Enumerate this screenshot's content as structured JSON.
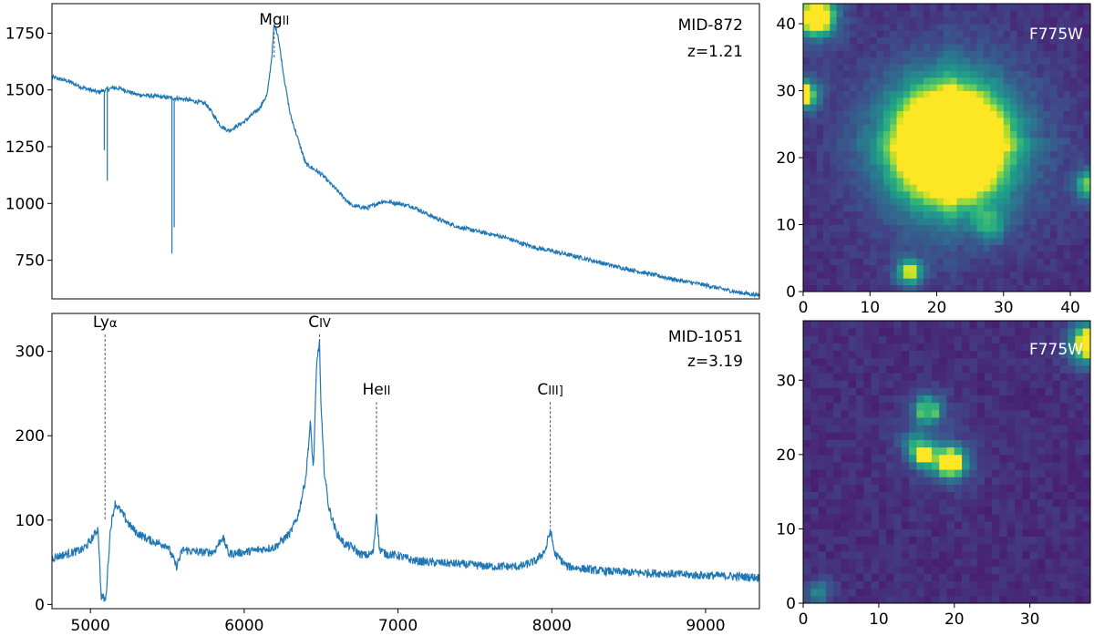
{
  "chart_data": [
    {
      "type": "line",
      "object": "MID-872",
      "redshift_label": "z=1.21",
      "xlim": [
        4750,
        9350
      ],
      "ylim": [
        580,
        1880
      ],
      "yticks": [
        750,
        1000,
        1250,
        1500,
        1750
      ],
      "xticks": [],
      "lines": [
        {
          "label": "Mg",
          "ion": "II",
          "x": 6195,
          "top": 1755,
          "bottom": 1640
        }
      ],
      "series": [
        {
          "name": "flux",
          "color": "#1f77b4",
          "x": [
            4755,
            4850,
            4950,
            5050,
            5150,
            5200,
            5300,
            5450,
            5600,
            5750,
            5850,
            5900,
            6000,
            6100,
            6150,
            6180,
            6195,
            6220,
            6260,
            6300,
            6400,
            6500,
            6600,
            6700,
            6800,
            6900,
            7000,
            7100,
            7200,
            7300,
            7400,
            7500,
            7600,
            7700,
            7800,
            7900,
            8000,
            8200,
            8400,
            8600,
            8800,
            9000,
            9200,
            9350
          ],
          "y": [
            1555,
            1540,
            1510,
            1490,
            1510,
            1505,
            1480,
            1470,
            1460,
            1440,
            1340,
            1320,
            1360,
            1420,
            1480,
            1650,
            1790,
            1740,
            1550,
            1390,
            1175,
            1130,
            1060,
            990,
            980,
            1010,
            1000,
            985,
            950,
            920,
            895,
            880,
            865,
            850,
            825,
            805,
            790,
            760,
            725,
            695,
            665,
            640,
            610,
            595
          ]
        },
        {
          "name": "absorption-dips",
          "x": [
            5090,
            5110,
            5530,
            5545
          ],
          "y": [
            1235,
            1100,
            780,
            895
          ]
        }
      ]
    },
    {
      "type": "line",
      "object": "MID-1051",
      "redshift_label": "z=3.19",
      "xlim": [
        4750,
        9350
      ],
      "ylim": [
        -5,
        345
      ],
      "yticks": [
        0,
        100,
        200,
        300
      ],
      "xticks": [
        5000,
        6000,
        7000,
        8000,
        9000
      ],
      "lines": [
        {
          "label": "Ly",
          "ion": "α",
          "x": 5095,
          "top": 320,
          "bottom": 100
        },
        {
          "label": "C",
          "ion": "IV",
          "x": 6490,
          "top": 320,
          "bottom": 310
        },
        {
          "label": "He",
          "ion": "II",
          "x": 6860,
          "top": 240,
          "bottom": 110
        },
        {
          "label": "C",
          "ion": "III]",
          "x": 7990,
          "top": 240,
          "bottom": 92
        }
      ],
      "series": [
        {
          "name": "flux",
          "color": "#1f77b4",
          "x": [
            4750,
            4850,
            4950,
            5000,
            5050,
            5070,
            5100,
            5130,
            5160,
            5200,
            5250,
            5300,
            5400,
            5500,
            5560,
            5600,
            5700,
            5800,
            5860,
            5900,
            6000,
            6100,
            6200,
            6300,
            6350,
            6400,
            6430,
            6450,
            6470,
            6480,
            6490,
            6500,
            6520,
            6550,
            6600,
            6650,
            6700,
            6750,
            6800,
            6840,
            6860,
            6880,
            6920,
            7000,
            7100,
            7200,
            7400,
            7600,
            7800,
            7900,
            7960,
            7990,
            8020,
            8100,
            8300,
            8500,
            8700,
            8900,
            9100,
            9350
          ],
          "y": [
            55,
            60,
            65,
            75,
            90,
            10,
            5,
            90,
            120,
            110,
            95,
            85,
            75,
            70,
            45,
            65,
            62,
            62,
            80,
            60,
            62,
            65,
            68,
            85,
            105,
            150,
            215,
            160,
            280,
            300,
            310,
            230,
            160,
            115,
            85,
            72,
            68,
            60,
            58,
            62,
            110,
            65,
            60,
            58,
            52,
            50,
            48,
            45,
            45,
            52,
            65,
            88,
            60,
            45,
            40,
            38,
            37,
            35,
            34,
            32
          ]
        }
      ]
    },
    {
      "type": "heatmap",
      "object": "MID-872 image",
      "filter": "F775W",
      "xlim": [
        0,
        43
      ],
      "ylim": [
        0,
        43
      ],
      "xticks": [
        0,
        10,
        20,
        30,
        40
      ],
      "yticks": [
        0,
        10,
        20,
        30,
        40
      ],
      "colormap": "viridis",
      "sources": [
        {
          "x": 22,
          "y": 22,
          "r": 7.8,
          "peak": 1.0
        },
        {
          "x": 2,
          "y": 41,
          "r": 1.8,
          "peak": 1.0
        },
        {
          "x": 0,
          "y": 29.5,
          "r": 1.2,
          "peak": 0.9
        },
        {
          "x": 16,
          "y": 3,
          "r": 1.0,
          "peak": 0.75
        },
        {
          "x": 43,
          "y": 16,
          "r": 1.3,
          "peak": 0.6
        },
        {
          "x": 28,
          "y": 10,
          "r": 1.5,
          "peak": 0.3
        }
      ]
    },
    {
      "type": "heatmap",
      "object": "MID-1051 image",
      "filter": "F775W",
      "xlim": [
        0,
        38
      ],
      "ylim": [
        0,
        38
      ],
      "xticks": [
        0,
        10,
        20,
        30
      ],
      "yticks": [
        0,
        10,
        20,
        30
      ],
      "colormap": "viridis",
      "sources": [
        {
          "x": 19.5,
          "y": 19,
          "r": 1.2,
          "peak": 1.0
        },
        {
          "x": 16,
          "y": 20,
          "r": 0.8,
          "peak": 0.8
        },
        {
          "x": 16.5,
          "y": 26,
          "r": 1.2,
          "peak": 0.55
        },
        {
          "x": 38,
          "y": 35,
          "r": 1.5,
          "peak": 1.0
        },
        {
          "x": 14.5,
          "y": 21.5,
          "r": 0.8,
          "peak": 0.3
        },
        {
          "x": 2,
          "y": 1.5,
          "r": 0.8,
          "peak": 0.35
        }
      ]
    }
  ]
}
